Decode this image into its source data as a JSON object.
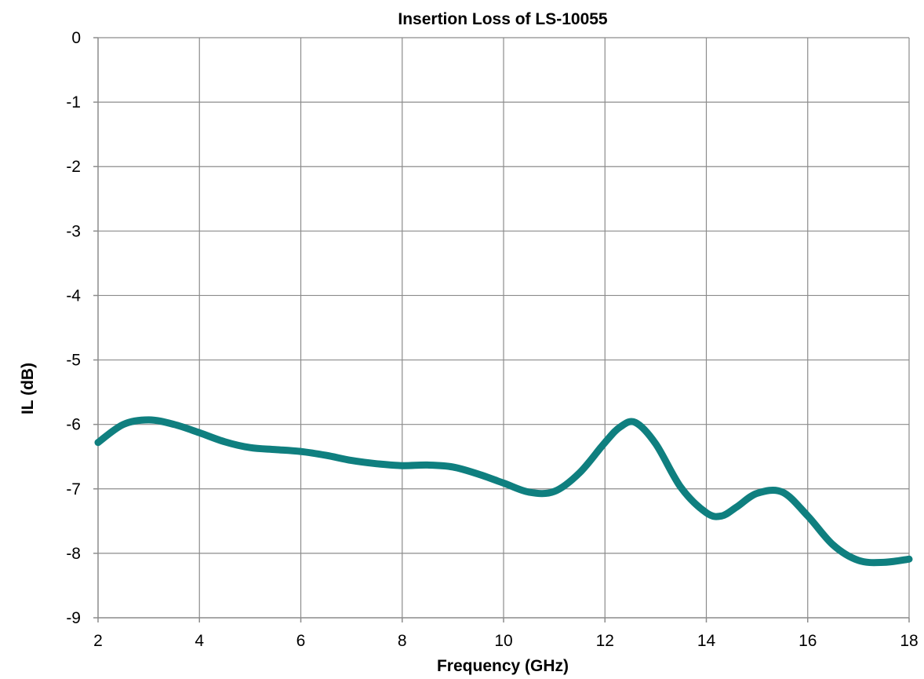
{
  "chart_data": {
    "type": "line",
    "title": "Insertion Loss of LS-10055",
    "xlabel": "Frequency (GHz)",
    "ylabel": "IL (dB)",
    "xlim": [
      2,
      18
    ],
    "ylim": [
      -9,
      0
    ],
    "x_ticks": [
      "2",
      "4",
      "6",
      "8",
      "10",
      "12",
      "14",
      "16",
      "18"
    ],
    "y_ticks": [
      "0",
      "-1",
      "-2",
      "-3",
      "-4",
      "-5",
      "-6",
      "-7",
      "-8",
      "-9"
    ],
    "grid": true,
    "legend": "none",
    "series": [
      {
        "color": "#0f7f7f",
        "x": [
          2.0,
          2.5,
          3.0,
          3.5,
          4.0,
          4.5,
          5.0,
          5.5,
          6.0,
          6.5,
          7.0,
          7.5,
          8.0,
          8.5,
          9.0,
          9.5,
          10.0,
          10.5,
          11.0,
          11.5,
          12.0,
          12.3,
          12.6,
          13.0,
          13.5,
          14.0,
          14.3,
          14.6,
          15.0,
          15.5,
          16.0,
          16.5,
          17.0,
          17.5,
          18.0
        ],
        "values": [
          -6.28,
          -6.0,
          -5.93,
          -6.0,
          -6.13,
          -6.27,
          -6.36,
          -6.39,
          -6.42,
          -6.48,
          -6.56,
          -6.61,
          -6.64,
          -6.63,
          -6.66,
          -6.77,
          -6.91,
          -7.05,
          -7.04,
          -6.75,
          -6.28,
          -6.04,
          -5.97,
          -6.3,
          -6.98,
          -7.37,
          -7.42,
          -7.28,
          -7.07,
          -7.05,
          -7.42,
          -7.87,
          -8.11,
          -8.14,
          -8.09
        ]
      }
    ]
  }
}
